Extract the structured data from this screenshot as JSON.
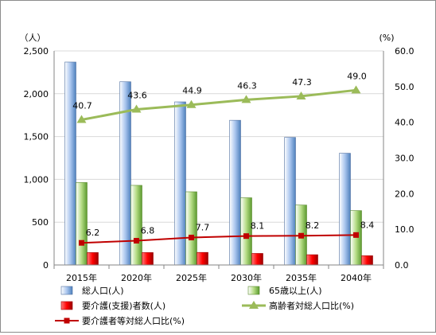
{
  "chart_data": {
    "type": "bar",
    "categories": [
      "2015年",
      "2020年",
      "2025年",
      "2030年",
      "2035年",
      "2040年"
    ],
    "left_axis": {
      "unit_label": "（人）",
      "range": [
        0,
        2500
      ],
      "ticks": [
        "0",
        "500",
        "1,000",
        "1,500",
        "2,000",
        "2,500"
      ]
    },
    "right_axis": {
      "unit_label": "(%)",
      "range": [
        0,
        60
      ],
      "ticks": [
        "0.0",
        "10.0",
        "20.0",
        "30.0",
        "40.0",
        "50.0",
        "60.0"
      ]
    },
    "grid": true,
    "legend_position": "bottom",
    "series": [
      {
        "name": "総人口(人)",
        "type": "bar",
        "axis": "left",
        "color": "#8db3e2",
        "values": [
          2370,
          2140,
          1905,
          1690,
          1490,
          1305
        ]
      },
      {
        "name": "65歳以上(人)",
        "type": "bar",
        "axis": "left",
        "color": "#92d050",
        "values": [
          963,
          930,
          855,
          785,
          700,
          635
        ]
      },
      {
        "name": "要介護(支援)者数(人)",
        "type": "bar",
        "axis": "left",
        "color": "#ff0000",
        "values": [
          145,
          145,
          147,
          135,
          120,
          108
        ]
      },
      {
        "name": "高齢者対総人口比(%)",
        "type": "line",
        "axis": "right",
        "color": "#9bbb59",
        "marker": "triangle",
        "values": [
          40.7,
          43.6,
          44.9,
          46.3,
          47.3,
          49.0
        ],
        "labels": [
          "40.7",
          "43.6",
          "44.9",
          "46.3",
          "47.3",
          "49.0"
        ]
      },
      {
        "name": "要介護者等対総人口比(%)",
        "type": "line",
        "axis": "right",
        "color": "#c00000",
        "marker": "square",
        "values": [
          6.2,
          6.8,
          7.7,
          8.1,
          8.2,
          8.4
        ],
        "labels": [
          "6.2",
          "6.8",
          "7.7",
          "8.1",
          "8.2",
          "8.4"
        ]
      }
    ]
  }
}
